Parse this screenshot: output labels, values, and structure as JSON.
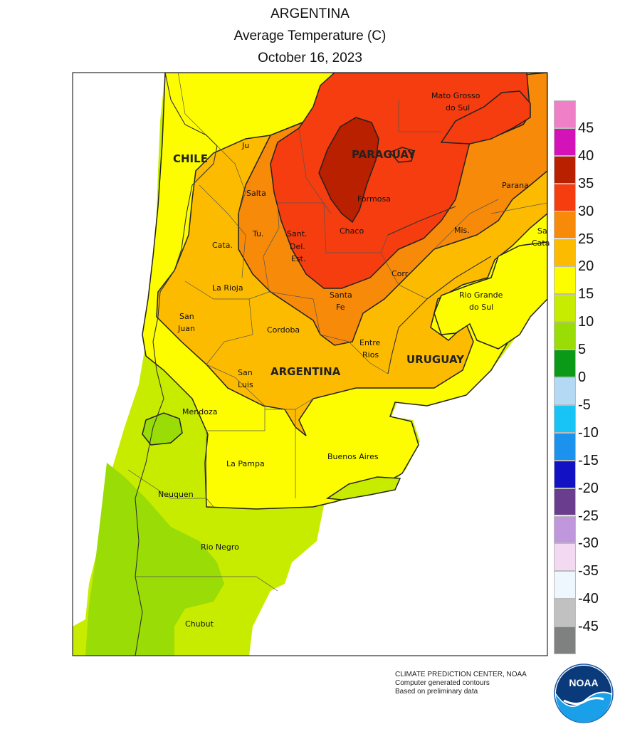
{
  "title": {
    "line1": "ARGENTINA",
    "line2": "Average Temperature (C)",
    "line3": "October 16, 2023"
  },
  "countries": {
    "chile": "CHILE",
    "paraguay": "PARAGUAY",
    "argentina": "ARGENTINA",
    "uruguay": "URUGUAY"
  },
  "regions": {
    "jujuy": "Ju",
    "salta": "Salta",
    "formosa": "Formosa",
    "tucuman": "Tu.",
    "catamarca": "Cata.",
    "santiago_line1": "Sant.",
    "santiago_line2": "Del.",
    "santiago_line3": "Est.",
    "chaco": "Chaco",
    "misiones": "Mis.",
    "corrientes": "Corr",
    "la_rioja": "La Rioja",
    "san_juan_line1": "San",
    "san_juan_line2": "Juan",
    "cordoba": "Cordoba",
    "santa_fe_line1": "Santa",
    "santa_fe_line2": "Fe",
    "entre_rios_line1": "Entre",
    "entre_rios_line2": "Rios",
    "san_luis_line1": "San",
    "san_luis_line2": "Luis",
    "mendoza": "Mendoza",
    "la_pampa": "La Pampa",
    "buenos_aires": "Buenos Aires",
    "neuquen": "Neuquen",
    "rio_negro": "Rio Negro",
    "chubut": "Chubut",
    "mato_grosso_line1": "Mato Grosso",
    "mato_grosso_line2": "do Sul",
    "parana": "Parana",
    "santa_catarina_line1": "Sa",
    "santa_catarina_line2": "Cata",
    "rio_grande_line1": "Rio Grande",
    "rio_grande_line2": "do Sul"
  },
  "legend": {
    "ticks": [
      "45",
      "40",
      "35",
      "30",
      "25",
      "20",
      "15",
      "10",
      "5",
      "0",
      "-5",
      "-10",
      "-15",
      "-20",
      "-25",
      "-30",
      "-35",
      "-40",
      "-45"
    ],
    "colors": [
      "#ef7fc7",
      "#d312b8",
      "#b82000",
      "#f53d0f",
      "#f78a08",
      "#fdbb00",
      "#fdfd00",
      "#c8ec00",
      "#9adc05",
      "#0b9a18",
      "#b3d9f5",
      "#17c4f5",
      "#1b93ee",
      "#1212c4",
      "#6a3d8e",
      "#c097dc",
      "#f3d9f2",
      "#eef7fd",
      "#c1c1c1",
      "#7f8080"
    ]
  },
  "temperature_colors": {
    "band_10_15": "#9adc05",
    "band_15_20": "#c8ec00",
    "band_20_25": "#fdfd00",
    "band_25_30": "#fdbb00",
    "band_30_35": "#f78a08",
    "band_35_40": "#f53d0f",
    "band_40_45": "#b82000"
  },
  "credit": {
    "line1": "CLIMATE PREDICTION CENTER, NOAA",
    "line2": "Computer generated contours",
    "line3": "Based on preliminary data"
  },
  "logo_text": "NOAA"
}
